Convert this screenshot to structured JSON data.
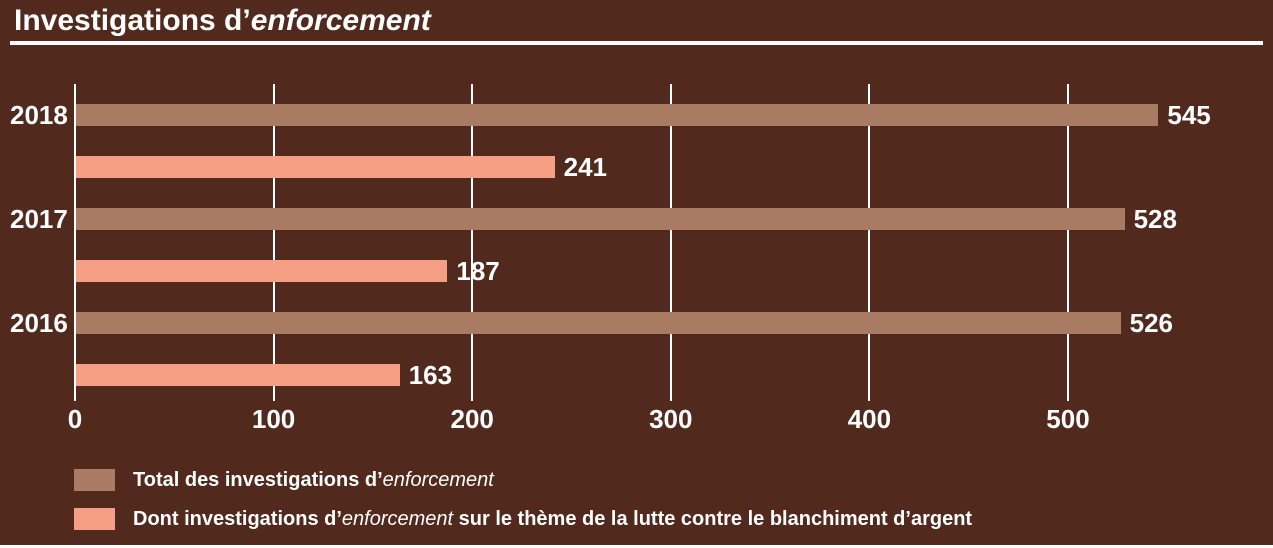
{
  "title": {
    "prefix": "Investigations d’",
    "italic": "enforcement"
  },
  "colors": {
    "background": "#522A1D",
    "total_bar": "#A97B63",
    "aml_bar": "#F5A084",
    "text": "#FFFFFF",
    "gridline": "#FFFFFF"
  },
  "chart_data": {
    "type": "bar",
    "orientation": "horizontal",
    "title": "Investigations d’enforcement",
    "categories": [
      "2018",
      "2017",
      "2016"
    ],
    "series": [
      {
        "name": "Total des investigations d’enforcement",
        "key": "total",
        "color": "#A97B63",
        "values": [
          545,
          528,
          526
        ]
      },
      {
        "name": "Dont investigations d’enforcement sur le thème de la lutte contre le blanchiment d’argent",
        "key": "aml",
        "color": "#F5A084",
        "values": [
          241,
          187,
          163
        ]
      }
    ],
    "x_ticks": [
      0,
      100,
      200,
      300,
      400,
      500
    ],
    "xlim": [
      0,
      560
    ],
    "grid": true,
    "data_labels": true,
    "legend_position": "bottom"
  },
  "legend": {
    "items": [
      {
        "prefix": "Total des investigations d’",
        "italic": "enforcement",
        "suffix": "",
        "color": "#A97B63"
      },
      {
        "prefix": "Dont investigations d’",
        "italic": "enforcement",
        "suffix": " sur le thème de la lutte contre le blanchiment d’argent",
        "color": "#F5A084"
      }
    ]
  }
}
